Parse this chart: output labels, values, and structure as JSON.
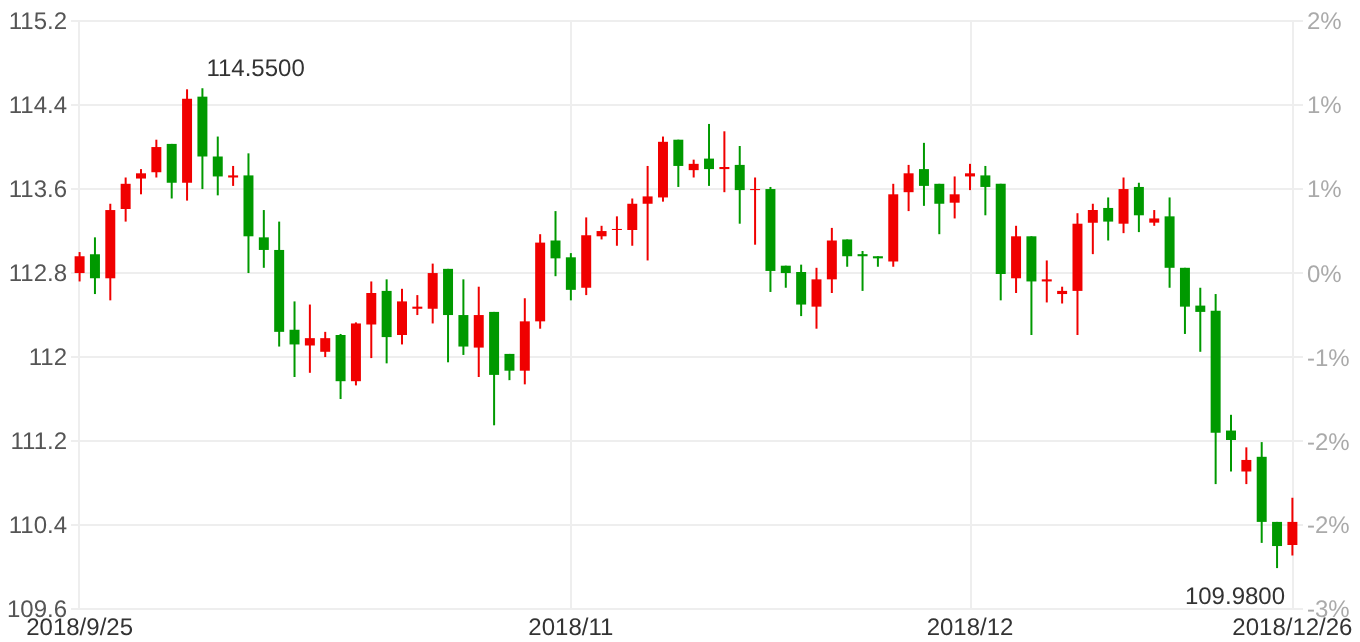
{
  "chart_data": {
    "type": "candlestick",
    "categories": [
      "2018/9/25",
      null,
      null,
      null,
      null,
      null,
      null,
      null,
      null,
      null,
      null,
      null,
      null,
      null,
      null,
      null,
      null,
      null,
      null,
      null,
      null,
      null,
      null,
      null,
      null,
      null,
      null,
      null,
      null,
      null,
      null,
      null,
      "2018/11",
      null,
      null,
      null,
      null,
      null,
      null,
      null,
      null,
      null,
      null,
      null,
      null,
      null,
      null,
      null,
      null,
      null,
      null,
      null,
      null,
      null,
      null,
      null,
      null,
      null,
      "2018/12",
      null,
      null,
      null,
      null,
      null,
      null,
      null,
      null,
      null,
      null,
      null,
      null,
      null,
      null,
      null,
      null,
      null,
      null,
      null,
      null,
      "2018/12/26"
    ],
    "ohlc": [
      [
        112.79,
        112.99,
        112.71,
        112.95
      ],
      [
        112.97,
        113.13,
        112.59,
        112.74
      ],
      [
        112.74,
        113.45,
        112.53,
        113.39
      ],
      [
        113.4,
        113.7,
        113.28,
        113.64
      ],
      [
        113.69,
        113.78,
        113.54,
        113.74
      ],
      [
        113.75,
        114.06,
        113.7,
        113.99
      ],
      [
        114.02,
        114.02,
        113.5,
        113.65
      ],
      [
        113.65,
        114.54,
        113.48,
        114.45
      ],
      [
        114.47,
        114.55,
        113.59,
        113.9
      ],
      [
        113.9,
        114.09,
        113.53,
        113.71
      ],
      [
        113.7,
        113.81,
        113.62,
        113.72
      ],
      [
        113.72,
        113.93,
        112.79,
        113.14
      ],
      [
        113.13,
        113.39,
        112.84,
        113.01
      ],
      [
        113.01,
        113.28,
        112.09,
        112.23
      ],
      [
        112.25,
        112.52,
        111.8,
        112.11
      ],
      [
        112.1,
        112.49,
        111.84,
        112.17
      ],
      [
        112.04,
        112.23,
        111.99,
        112.17
      ],
      [
        112.2,
        112.21,
        111.59,
        111.76
      ],
      [
        111.76,
        112.32,
        111.72,
        112.31
      ],
      [
        112.3,
        112.71,
        111.98,
        112.6
      ],
      [
        112.62,
        112.73,
        111.93,
        112.18
      ],
      [
        112.2,
        112.64,
        112.11,
        112.52
      ],
      [
        112.45,
        112.58,
        112.39,
        112.47
      ],
      [
        112.45,
        112.88,
        112.31,
        112.79
      ],
      [
        112.83,
        112.83,
        111.94,
        112.39
      ],
      [
        112.39,
        112.73,
        112.01,
        112.09
      ],
      [
        112.08,
        112.66,
        111.8,
        112.39
      ],
      [
        112.42,
        112.42,
        111.34,
        111.82
      ],
      [
        112.02,
        112.02,
        111.77,
        111.86
      ],
      [
        111.86,
        112.55,
        111.73,
        112.33
      ],
      [
        112.33,
        113.16,
        112.26,
        113.08
      ],
      [
        113.1,
        113.38,
        112.76,
        112.93
      ],
      [
        112.94,
        112.98,
        112.53,
        112.63
      ],
      [
        112.65,
        113.32,
        112.58,
        113.15
      ],
      [
        113.14,
        113.24,
        113.11,
        113.19
      ],
      [
        113.2,
        113.33,
        113.05,
        113.21
      ],
      [
        113.2,
        113.5,
        113.05,
        113.45
      ],
      [
        113.45,
        113.81,
        112.91,
        113.52
      ],
      [
        113.51,
        114.09,
        113.47,
        114.04
      ],
      [
        114.06,
        114.06,
        113.61,
        113.81
      ],
      [
        113.77,
        113.87,
        113.7,
        113.83
      ],
      [
        113.88,
        114.21,
        113.62,
        113.78
      ],
      [
        113.78,
        114.14,
        113.56,
        113.8
      ],
      [
        113.82,
        114.0,
        113.26,
        113.58
      ],
      [
        113.58,
        113.7,
        113.06,
        113.59
      ],
      [
        113.59,
        113.61,
        112.61,
        112.81
      ],
      [
        112.86,
        112.86,
        112.65,
        112.79
      ],
      [
        112.8,
        112.87,
        112.38,
        112.49
      ],
      [
        112.47,
        112.84,
        112.26,
        112.73
      ],
      [
        112.73,
        113.22,
        112.6,
        113.1
      ],
      [
        113.11,
        113.11,
        112.85,
        112.95
      ],
      [
        112.97,
        113.0,
        112.62,
        112.95
      ],
      [
        112.95,
        112.95,
        112.85,
        112.93
      ],
      [
        112.9,
        113.64,
        112.85,
        113.54
      ],
      [
        113.56,
        113.82,
        113.38,
        113.74
      ],
      [
        113.78,
        114.03,
        113.43,
        113.62
      ],
      [
        113.64,
        113.64,
        113.16,
        113.45
      ],
      [
        113.46,
        113.71,
        113.31,
        113.54
      ],
      [
        113.71,
        113.83,
        113.58,
        113.74
      ],
      [
        113.72,
        113.81,
        113.34,
        113.61
      ],
      [
        113.64,
        113.64,
        112.53,
        112.78
      ],
      [
        112.74,
        113.24,
        112.6,
        113.14
      ],
      [
        113.14,
        113.14,
        112.2,
        112.71
      ],
      [
        112.71,
        112.91,
        112.51,
        112.73
      ],
      [
        112.59,
        112.66,
        112.5,
        112.62
      ],
      [
        112.62,
        113.36,
        112.2,
        113.26
      ],
      [
        113.27,
        113.45,
        112.97,
        113.39
      ],
      [
        113.41,
        113.51,
        113.1,
        113.28
      ],
      [
        113.26,
        113.7,
        113.17,
        113.59
      ],
      [
        113.61,
        113.65,
        113.18,
        113.34
      ],
      [
        113.27,
        113.39,
        113.24,
        113.31
      ],
      [
        113.33,
        113.51,
        112.65,
        112.84
      ],
      [
        112.84,
        112.84,
        112.21,
        112.47
      ],
      [
        112.48,
        112.65,
        112.04,
        112.42
      ],
      [
        112.43,
        112.59,
        110.78,
        111.27
      ],
      [
        111.29,
        111.44,
        110.9,
        111.2
      ],
      [
        110.9,
        111.13,
        110.78,
        111.01
      ],
      [
        111.04,
        111.18,
        110.22,
        110.42
      ],
      [
        110.42,
        110.42,
        109.98,
        110.19
      ],
      [
        110.2,
        110.65,
        110.1,
        110.42
      ]
    ],
    "colors": [
      "#f00000",
      "#009900",
      "#f00000",
      "#f00000",
      "#f00000",
      "#f00000",
      "#009900",
      "#f00000",
      "#009900",
      "#009900",
      "#f00000",
      "#009900",
      "#009900",
      "#009900",
      "#009900",
      "#f00000",
      "#f00000",
      "#009900",
      "#f00000",
      "#f00000",
      "#009900",
      "#f00000",
      "#f00000",
      "#f00000",
      "#009900",
      "#009900",
      "#f00000",
      "#009900",
      "#009900",
      "#f00000",
      "#f00000",
      "#009900",
      "#009900",
      "#f00000",
      "#f00000",
      "#f00000",
      "#f00000",
      "#f00000",
      "#f00000",
      "#009900",
      "#f00000",
      "#009900",
      "#f00000",
      "#009900",
      "#f00000",
      "#009900",
      "#009900",
      "#009900",
      "#f00000",
      "#f00000",
      "#009900",
      "#009900",
      "#009900",
      "#f00000",
      "#f00000",
      "#009900",
      "#009900",
      "#f00000",
      "#f00000",
      "#009900",
      "#009900",
      "#f00000",
      "#009900",
      "#f00000",
      "#f00000",
      "#f00000",
      "#f00000",
      "#009900",
      "#f00000",
      "#009900",
      "#f00000",
      "#009900",
      "#009900",
      "#009900",
      "#009900",
      "#009900",
      "#f00000",
      "#009900",
      "#009900",
      "#f00000"
    ],
    "ylim": [
      109.6,
      115.2
    ],
    "yticks": [
      109.6,
      110.4,
      111.2,
      112,
      112.8,
      113.6,
      114.4,
      115.2
    ],
    "y2lim": [
      -2.92,
      2.04
    ],
    "y2ticks": [
      {
        "value": -2.92,
        "label": "-3%"
      },
      {
        "value": -2.21,
        "label": "-2%"
      },
      {
        "value": -1.51,
        "label": "-2%"
      },
      {
        "value": -0.8,
        "label": "-1%"
      },
      {
        "value": -0.09,
        "label": "0%"
      },
      {
        "value": 0.62,
        "label": "1%"
      },
      {
        "value": 1.33,
        "label": "1%"
      },
      {
        "value": 2.04,
        "label": "2%"
      }
    ],
    "annotations": [
      "114.5500",
      "109.9800"
    ],
    "grid": true
  }
}
